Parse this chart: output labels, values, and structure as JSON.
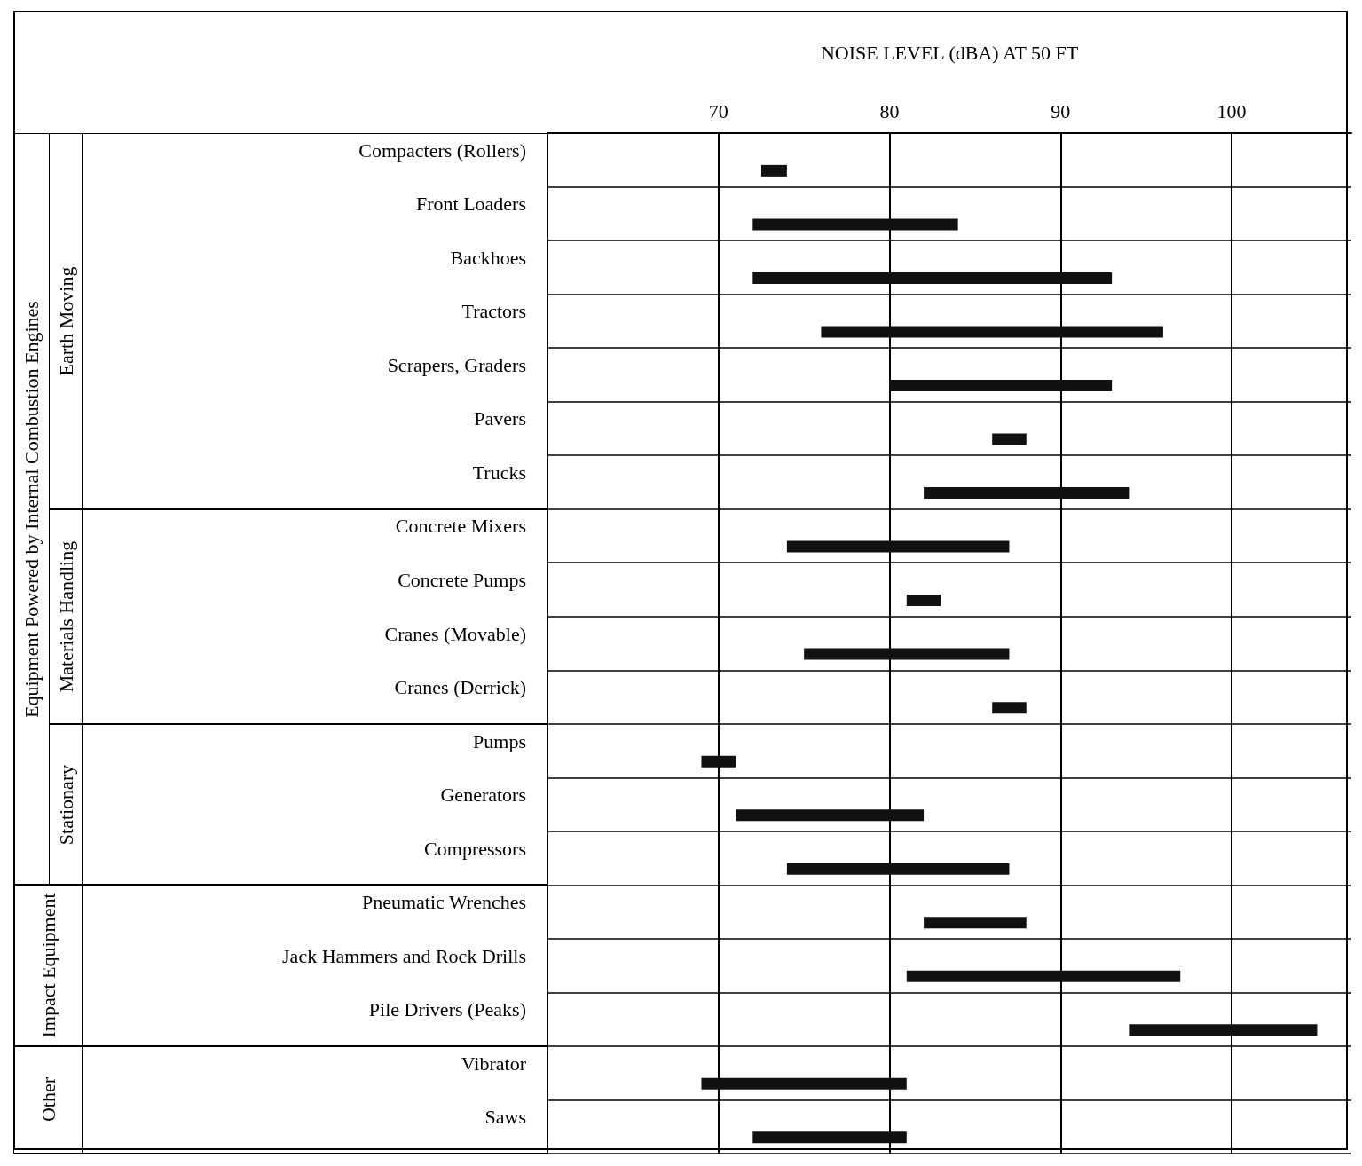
{
  "chart_data": {
    "type": "bar",
    "orientation": "horizontal",
    "xlabel": "NOISE LEVEL (dBA) AT 50 FT",
    "categories": [
      "Compacters (Rollers)",
      "Front Loaders",
      "Backhoes",
      "Tractors",
      "Scrapers, Graders",
      "Pavers",
      "Trucks",
      "Concrete Mixers",
      "Concrete Pumps",
      "Cranes (Movable)",
      "Cranes (Derrick)",
      "Pumps",
      "Generators",
      "Compressors",
      "Pneumatic Wrenches",
      "Jack Hammers and Rock Drills",
      "Pile Drivers (Peaks)",
      "Vibrator",
      "Saws"
    ],
    "base": [
      72.5,
      72,
      72,
      76,
      80,
      86,
      82,
      74,
      81,
      75,
      86,
      69,
      71,
      74,
      82,
      81,
      94,
      69,
      72
    ],
    "values": [
      1.5,
      12,
      21,
      20,
      13,
      2,
      12,
      13,
      2,
      12,
      2,
      2,
      11,
      13,
      6,
      16,
      11,
      12,
      9
    ],
    "color": "#111111",
    "xlim": [
      60,
      107
    ],
    "xticks": [
      70,
      80,
      90,
      100
    ],
    "grid": true,
    "annotations": [
      "Equipment Powered by Internal Combustion Engines",
      "Earth Moving",
      "Materials Handling",
      "Stationary",
      "Impact Equipment",
      "Other"
    ]
  }
}
